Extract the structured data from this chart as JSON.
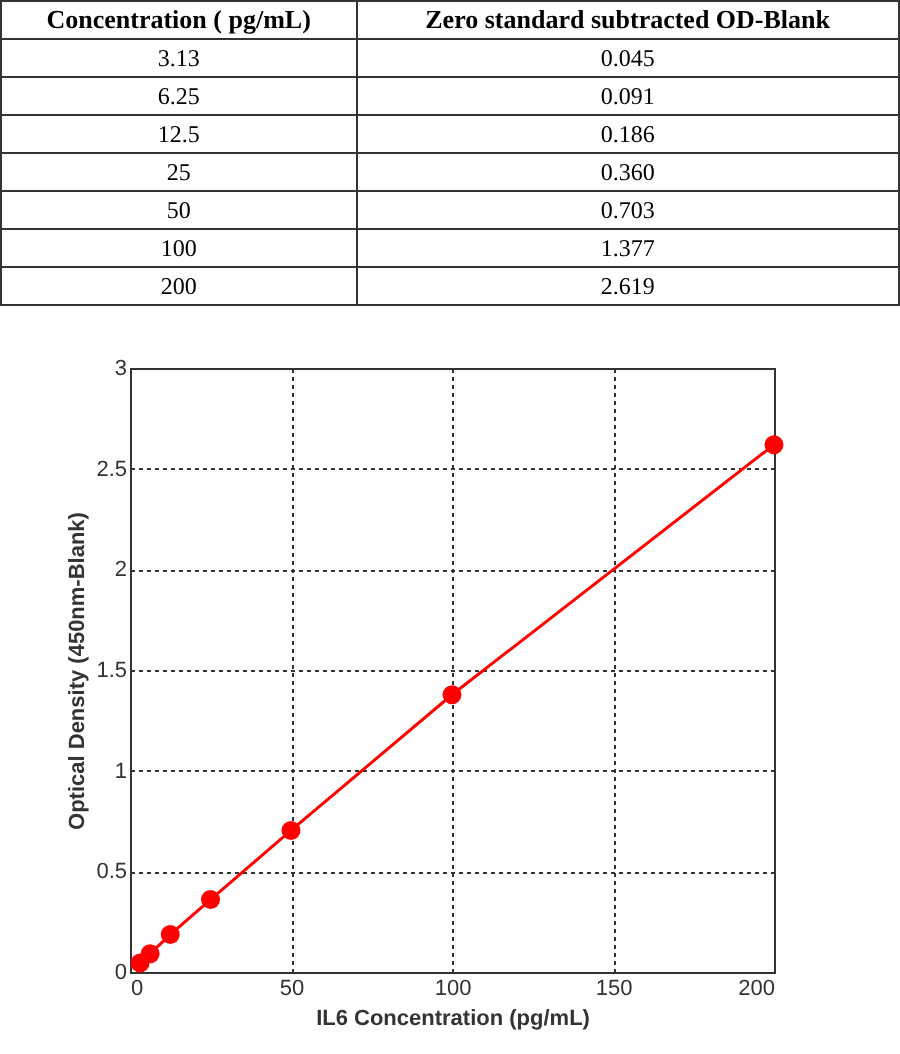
{
  "chart_data": [
    {
      "type": "other",
      "annotations": [
        "Concentration ( pg/mL)",
        "Zero standard subtracted OD-Blank",
        "3.13",
        "0.045",
        "6.25",
        "0.091",
        "12.5",
        "0.186",
        "25",
        "0.360",
        "50",
        "0.703",
        "100",
        "1.377",
        "200",
        "2.619"
      ]
    },
    {
      "type": "line",
      "xlabel": "IL6 Concentration (pg/mL)",
      "ylabel": "Optical Density (450nm-Blank)",
      "x": [
        3.13,
        6.25,
        12.5,
        25,
        50,
        100,
        200
      ],
      "series": [
        {
          "color": "#ff0000",
          "values": [
            0.045,
            0.091,
            0.186,
            0.36,
            0.703,
            1.377,
            2.619
          ]
        }
      ],
      "xlim": [
        0,
        200
      ],
      "xticks": [
        0,
        50,
        100,
        150,
        200
      ],
      "ylim": [
        0,
        3
      ],
      "yticks": [
        0,
        0.5,
        1,
        1.5,
        2,
        2.5,
        3
      ],
      "grid": true,
      "marker": "circle",
      "line_style": "solid"
    }
  ]
}
